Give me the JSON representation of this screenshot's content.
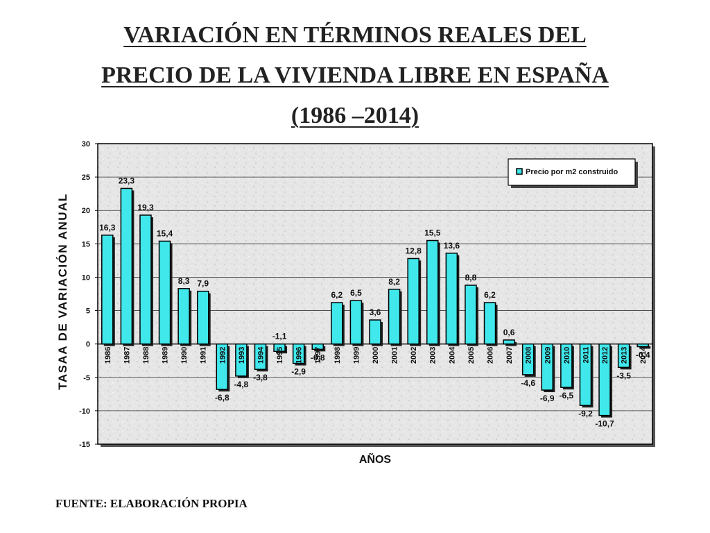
{
  "title": {
    "line1": "VARIACIÓN EN TÉRMINOS REALES DEL",
    "line2": "PRECIO DE LA VIVIENDA LIBRE EN ESPAÑA",
    "line3": "(1986 –2014)"
  },
  "source": "FUENTE: ELABORACIÓN PROPIA",
  "colors": {
    "bar": "#40e8ec",
    "bar_outline": "#000000",
    "plot_bg": "#e9e9e9",
    "shadow": "#202020"
  },
  "chart_data": {
    "type": "bar",
    "xlabel": "AÑOS",
    "ylabel": "TASAA DE VARIACIÓN ANUAL",
    "ylim": [
      -15,
      30
    ],
    "yticks": [
      -15,
      -10,
      -5,
      0,
      5,
      10,
      15,
      20,
      25,
      30
    ],
    "grid": true,
    "legend_position": "top-right",
    "categories": [
      "1986",
      "1987",
      "1988",
      "1989",
      "1990",
      "1991",
      "1992",
      "1993",
      "1994",
      "1995",
      "1996",
      "1997",
      "1998",
      "1999",
      "2000",
      "2001",
      "2002",
      "2003",
      "2004",
      "2005",
      "2006",
      "2007",
      "2008",
      "2009",
      "2010",
      "2011",
      "2012",
      "2013",
      "2014"
    ],
    "series": [
      {
        "name": "Precio por m2 construido",
        "values": [
          16.3,
          23.3,
          19.3,
          15.4,
          8.3,
          7.9,
          -6.8,
          -4.8,
          -3.8,
          -1.1,
          -2.9,
          -0.8,
          6.2,
          6.5,
          3.6,
          8.2,
          12.8,
          15.5,
          13.6,
          8.8,
          6.2,
          0.6,
          -4.6,
          -6.9,
          -6.5,
          -9.2,
          -10.7,
          -3.5,
          -0.4
        ],
        "labels": [
          "16,3",
          "23,3",
          "19,3",
          "15,4",
          "8,3",
          "7,9",
          "-6,8",
          "-4,8",
          "-3,8",
          "-1,1",
          "-2,9",
          "-0,8",
          "6,2",
          "6,5",
          "3,6",
          "8,2",
          "12,8",
          "15,5",
          "13,6",
          "8,8",
          "6,2",
          "0,6",
          "-4,6",
          "-6,9",
          "-6,5",
          "-9,2",
          "-10,7",
          "-3,5",
          "-0,4"
        ]
      }
    ]
  }
}
